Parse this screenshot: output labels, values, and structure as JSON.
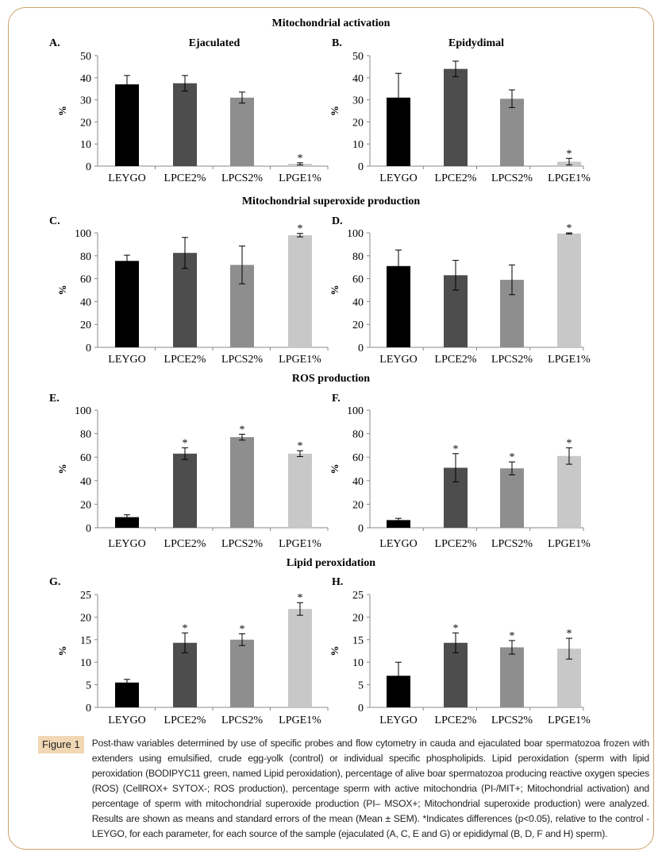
{
  "sections": [
    {
      "title": "Mitochondrial activation"
    },
    {
      "title": "Mitochondrial superoxide production"
    },
    {
      "title": "ROS production"
    },
    {
      "title": "Lipid peroxidation"
    }
  ],
  "colors": {
    "bars": [
      "#000000",
      "#4d4d4d",
      "#8e8e8e",
      "#c8c8c8"
    ],
    "frame": "#c9a26b",
    "badge": "#f1d7b4"
  },
  "chart_data": [
    {
      "type": "bar",
      "panel": "A.",
      "title": "Ejaculated",
      "ylabel": "%",
      "ylim": [
        0,
        50
      ],
      "yticks": [
        0,
        10,
        20,
        30,
        40,
        50
      ],
      "categories": [
        "LEYGO",
        "LPCE2%",
        "LPCS2%",
        "LPGE1%"
      ],
      "values": [
        37,
        37.5,
        31,
        1
      ],
      "errors": [
        4,
        3.5,
        2.5,
        0.5
      ],
      "significant": [
        false,
        false,
        false,
        true
      ]
    },
    {
      "type": "bar",
      "panel": "B.",
      "title": "Epidydimal",
      "ylabel": "%",
      "ylim": [
        0,
        50
      ],
      "yticks": [
        0,
        10,
        20,
        30,
        40,
        50
      ],
      "categories": [
        "LEYGO",
        "LPCE2%",
        "LPCS2%",
        "LPGE1%"
      ],
      "values": [
        31,
        44,
        30.5,
        2
      ],
      "errors": [
        11,
        3.5,
        4,
        1.5
      ],
      "significant": [
        false,
        false,
        false,
        true
      ]
    },
    {
      "type": "bar",
      "panel": "C.",
      "title": "",
      "ylabel": "%",
      "ylim": [
        0,
        100
      ],
      "yticks": [
        0,
        20,
        40,
        60,
        80,
        100
      ],
      "categories": [
        "LEYGO",
        "LPCE2%",
        "LPCS2%",
        "LPGE1%"
      ],
      "values": [
        75.5,
        82.5,
        72,
        98
      ],
      "errors": [
        5,
        13.5,
        16.5,
        1.5
      ],
      "significant": [
        false,
        false,
        false,
        true
      ]
    },
    {
      "type": "bar",
      "panel": "D.",
      "title": "",
      "ylabel": "%",
      "ylim": [
        0,
        100
      ],
      "yticks": [
        0,
        20,
        40,
        60,
        80,
        100
      ],
      "categories": [
        "LEYGO",
        "LPCE2%",
        "LPCS2%",
        "LPGE1%"
      ],
      "values": [
        71,
        63,
        59,
        99.5
      ],
      "errors": [
        14,
        13,
        13,
        0.5
      ],
      "significant": [
        false,
        false,
        false,
        true
      ]
    },
    {
      "type": "bar",
      "panel": "E.",
      "title": "",
      "ylabel": "%",
      "ylim": [
        0,
        100
      ],
      "yticks": [
        0,
        20,
        40,
        60,
        80,
        100
      ],
      "categories": [
        "LEYGO",
        "LPCE2%",
        "LPCS2%",
        "LPGE1%"
      ],
      "values": [
        9,
        63,
        77,
        63
      ],
      "errors": [
        2,
        5,
        2.5,
        2.5
      ],
      "significant": [
        false,
        true,
        true,
        true
      ]
    },
    {
      "type": "bar",
      "panel": "F.",
      "title": "",
      "ylabel": "%",
      "ylim": [
        0,
        100
      ],
      "yticks": [
        0,
        20,
        40,
        60,
        80,
        100
      ],
      "categories": [
        "LEYGO",
        "LPCE2%",
        "LPCS2%",
        "LPGE1%"
      ],
      "values": [
        6.5,
        51,
        50.5,
        61
      ],
      "errors": [
        1.5,
        12,
        5.5,
        7
      ],
      "significant": [
        false,
        true,
        true,
        true
      ]
    },
    {
      "type": "bar",
      "panel": "G.",
      "title": "",
      "ylabel": "%",
      "ylim": [
        0,
        25
      ],
      "yticks": [
        0,
        5,
        10,
        15,
        20,
        25
      ],
      "categories": [
        "LEYGO",
        "LPCE2%",
        "LPCS2%",
        "LPGE1%"
      ],
      "values": [
        5.5,
        14.3,
        15,
        21.8
      ],
      "errors": [
        0.7,
        2.2,
        1.3,
        1.4
      ],
      "significant": [
        false,
        true,
        true,
        true
      ]
    },
    {
      "type": "bar",
      "panel": "H.",
      "title": "",
      "ylabel": "%",
      "ylim": [
        0,
        25
      ],
      "yticks": [
        0,
        5,
        10,
        15,
        20,
        25
      ],
      "categories": [
        "LEYGO",
        "LPCE2%",
        "LPCS2%",
        "LPGE1%"
      ],
      "values": [
        7,
        14.3,
        13.3,
        13
      ],
      "errors": [
        3,
        2.2,
        1.5,
        2.3
      ],
      "significant": [
        false,
        true,
        true,
        true
      ]
    }
  ],
  "significance_marker": "*",
  "caption": {
    "label": "Figure 1",
    "text": "Post-thaw variables determined by use of specific probes and flow cytometry in cauda and ejaculated boar spermatozoa frozen with extenders using emulsified, crude egg-yolk (control) or individual specific phospholipids. Lipid peroxidation (sperm with lipid peroxidation (BODIPYC11 green, named Lipid peroxidation), percentage of alive boar spermatozoa producing reactive oxygen species (ROS) (CellROX+ SYTOX-; ROS production), percentage sperm with active mitochondria (PI-/MIT+; Mitochondrial activation) and percentage of sperm with mitochondrial superoxide production (PI– MSOX+; Mitochondrial superoxide production) were analyzed. Results are shown as means and standard errors of the mean (Mean ± SEM). *Indicates differences (p<0.05), relative to the control - LEYGO, for each parameter, for each source of the sample (ejaculated (A, C, E and G) or epididymal (B, D, F and H) sperm)."
  }
}
